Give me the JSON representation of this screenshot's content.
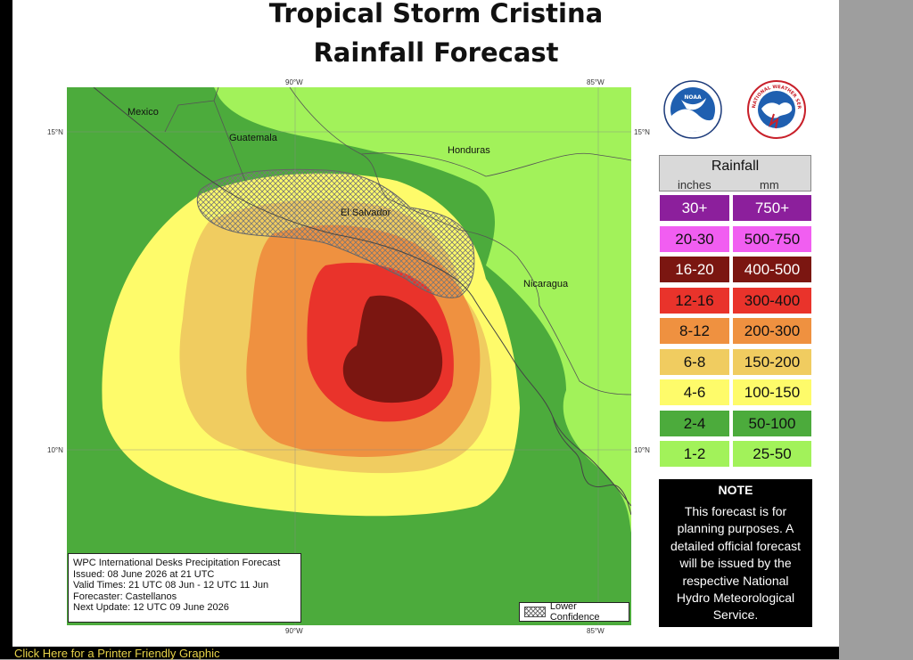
{
  "title": {
    "line1": "Tropical Storm Cristina",
    "line2": "Rainfall Forecast"
  },
  "map": {
    "coords": {
      "lon_90_top": "90°W",
      "lon_85_top": "85°W",
      "lon_90_bottom": "90°W",
      "lon_85_bottom": "85°W",
      "lat_15_left": "15°N",
      "lat_15_right": "15°N",
      "lat_10_left": "10°N",
      "lat_10_right": "10°N"
    },
    "countries": {
      "mexico": "Mexico",
      "guatemala": "Guatemala",
      "honduras": "Honduras",
      "el_salvador": "El Salvador",
      "nicaragua": "Nicaragua"
    },
    "colors": {
      "ocean": "#36aa40",
      "land": "#a2f25a",
      "band_2_4": "#4cab3c",
      "band_4_6": "#fefb6a",
      "band_6_8": "#f0cc60",
      "band_8_12": "#ef9140",
      "band_12_16": "#e9332b",
      "band_16_20": "#7b1611"
    }
  },
  "info": {
    "line1": "WPC International Desks Precipitation Forecast",
    "line2": "Issued: 08 June 2026 at 21 UTC",
    "line3": "Valid Times: 21 UTC 08 Jun - 12 UTC 11 Jun",
    "line4": "Forecaster: Castellanos",
    "line5": "Next Update: 12 UTC 09 June 2026"
  },
  "lower_confidence": "Lower Confidence",
  "logos": {
    "noaa": "NOAA",
    "nws": "NATIONAL WEATHER SERVICE"
  },
  "legend": {
    "title": "Rainfall",
    "inches_label": "inches",
    "mm_label": "mm",
    "items": [
      {
        "inches": "30+",
        "mm": "750+",
        "color": "#8c1f9c",
        "text_color": "#ffffff"
      },
      {
        "inches": "20-30",
        "mm": "500-750",
        "color": "#f15ef1",
        "text_color": "#111111"
      },
      {
        "inches": "16-20",
        "mm": "400-500",
        "color": "#7b1611",
        "text_color": "#ffffff"
      },
      {
        "inches": "12-16",
        "mm": "300-400",
        "color": "#e9332b",
        "text_color": "#111111"
      },
      {
        "inches": "8-12",
        "mm": "200-300",
        "color": "#ef9140",
        "text_color": "#111111"
      },
      {
        "inches": "6-8",
        "mm": "150-200",
        "color": "#f0cc60",
        "text_color": "#111111"
      },
      {
        "inches": "4-6",
        "mm": "100-150",
        "color": "#fefb6a",
        "text_color": "#111111"
      },
      {
        "inches": "2-4",
        "mm": "50-100",
        "color": "#4cab3c",
        "text_color": "#111111"
      },
      {
        "inches": "1-2",
        "mm": "25-50",
        "color": "#a2f25a",
        "text_color": "#111111"
      }
    ]
  },
  "note": {
    "title": "NOTE",
    "text": "This forecast is for planning purposes. A detailed official forecast will be issued by the respective National Hydro Meteorological Service."
  },
  "printer_link": "Click Here for a Printer Friendly Graphic"
}
